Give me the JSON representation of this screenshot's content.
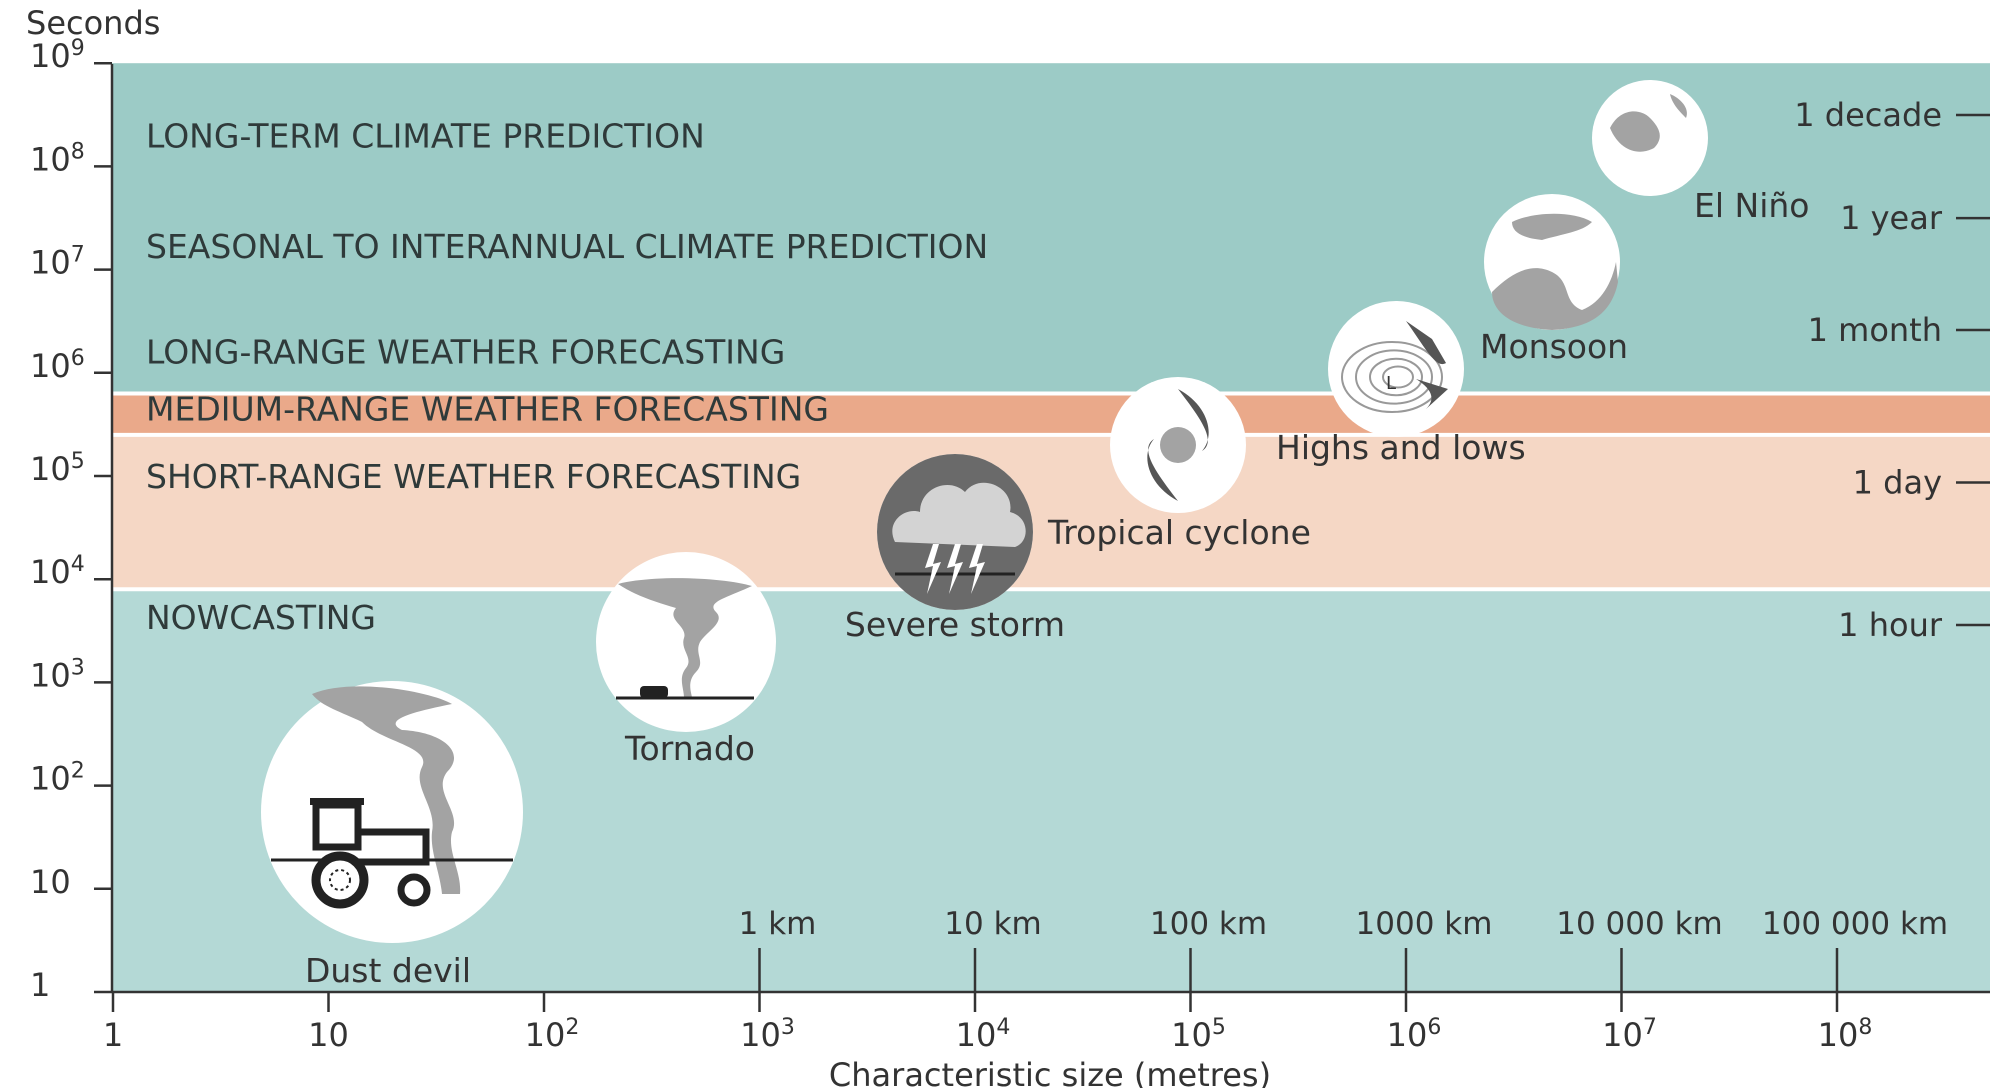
{
  "chart_data": {
    "type": "diagram",
    "xlabel": "Characteristic size (metres)",
    "ylabel": "Seconds",
    "x_scale": "log",
    "y_scale": "log",
    "xlim": [
      1,
      500000000
    ],
    "ylim": [
      1,
      1000000000
    ],
    "x_ticks": [
      {
        "value": 1,
        "label": "1"
      },
      {
        "value": 10,
        "label": "10"
      },
      {
        "value": 100,
        "label": "10",
        "exp": "2"
      },
      {
        "value": 1000,
        "label": "10",
        "exp": "3"
      },
      {
        "value": 10000,
        "label": "10",
        "exp": "4"
      },
      {
        "value": 100000,
        "label": "10",
        "exp": "5"
      },
      {
        "value": 1000000,
        "label": "10",
        "exp": "6"
      },
      {
        "value": 10000000,
        "label": "10",
        "exp": "7"
      },
      {
        "value": 100000000,
        "label": "10",
        "exp": "8"
      }
    ],
    "y_ticks": [
      {
        "value": 1,
        "label": "1"
      },
      {
        "value": 10,
        "label": "10"
      },
      {
        "value": 100,
        "label": "10",
        "exp": "2"
      },
      {
        "value": 1000,
        "label": "10",
        "exp": "3"
      },
      {
        "value": 10000,
        "label": "10",
        "exp": "4"
      },
      {
        "value": 100000,
        "label": "10",
        "exp": "5"
      },
      {
        "value": 1000000,
        "label": "10",
        "exp": "6"
      },
      {
        "value": 10000000,
        "label": "10",
        "exp": "7"
      },
      {
        "value": 100000000,
        "label": "10",
        "exp": "8"
      },
      {
        "value": 1000000000,
        "label": "10",
        "exp": "9"
      }
    ],
    "distance_markers": [
      {
        "value": 1000,
        "label": "1 km"
      },
      {
        "value": 10000,
        "label": "10 km"
      },
      {
        "value": 100000,
        "label": "100 km"
      },
      {
        "value": 1000000,
        "label": "1000 km"
      },
      {
        "value": 10000000,
        "label": "10 000 km"
      },
      {
        "value": 100000000,
        "label": "100 000 km"
      }
    ],
    "time_markers": [
      {
        "value": 315000000,
        "label": "1 decade"
      },
      {
        "value": 31500000,
        "label": "1 year"
      },
      {
        "value": 2600000,
        "label": "1 month"
      },
      {
        "value": 86400,
        "label": "1 day"
      },
      {
        "value": 3600,
        "label": "1 hour"
      }
    ],
    "bands": [
      {
        "name": "LONG-TERM CLIMATE PREDICTION",
        "label_y": 200000000,
        "y_from": 630000,
        "y_to": 1000000000,
        "color": "#9ccbc6",
        "fill": false
      },
      {
        "name": "SEASONAL TO INTERANNUAL CLIMATE PREDICTION",
        "label_y": 17000000,
        "fill": false
      },
      {
        "name": "LONG-RANGE WEATHER FORECASTING",
        "label_y": 1600000,
        "fill": false
      },
      {
        "name": "MEDIUM-RANGE WEATHER FORECASTING",
        "label_y": 450000,
        "y_from": 250000,
        "y_to": 630000,
        "color": "#eaa98a",
        "fill": true
      },
      {
        "name": "SHORT-RANGE WEATHER FORECASTING",
        "label_y": 100000,
        "y_from": 8000,
        "y_to": 250000,
        "color": "#f5d7c5",
        "fill": true
      },
      {
        "name": "NOWCASTING",
        "label_y": 4300,
        "y_from": 1,
        "y_to": 8000,
        "color": "#b4d9d6",
        "fill": true
      }
    ],
    "phenomena": [
      {
        "name": "Dust devil",
        "icon": "tractor-dust-devil-icon",
        "x": 30,
        "y": 30
      },
      {
        "name": "Tornado",
        "icon": "tornado-icon",
        "x": 900,
        "y": 1800
      },
      {
        "name": "Severe storm",
        "icon": "thunderstorm-icon",
        "x": 15000,
        "y": 60000
      },
      {
        "name": "Tropical cyclone",
        "icon": "cyclone-icon",
        "x": 250000,
        "y": 400000
      },
      {
        "name": "Highs and lows",
        "icon": "pressure-system-icon",
        "x": 3000000,
        "y": 1800000
      },
      {
        "name": "Monsoon",
        "icon": "globe-asia-australia-icon",
        "x": 20000000,
        "y": 15000000
      },
      {
        "name": "El Niño",
        "icon": "globe-pacific-icon",
        "x": 100000000,
        "y": 170000000
      }
    ]
  },
  "colors": {
    "upper_band": "#9ccbc6",
    "medium_range": "#eaa98a",
    "short_range": "#f5d7c5",
    "nowcasting": "#b4d9d6",
    "icon_grey": "#a3a3a3",
    "icon_dark": "#555555"
  }
}
